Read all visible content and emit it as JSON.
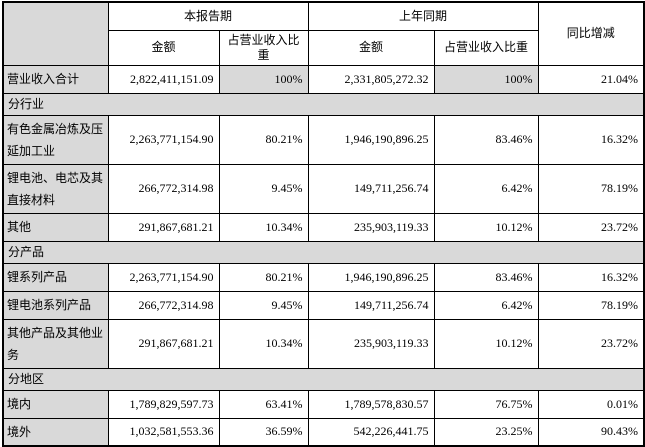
{
  "colors": {
    "shaded": "#d9d9d9",
    "border": "#000000",
    "text": "#000000",
    "background": "#ffffff"
  },
  "table": {
    "header": {
      "corner": "",
      "current_period": "本报告期",
      "prior_period": "上年同期",
      "yoy_change": "同比增减",
      "amount": "金额",
      "revenue_share": "占营业收入比重"
    },
    "rows": [
      {
        "type": "data",
        "name": "total-revenue",
        "label": "营业收入合计",
        "amount_current": "2,822,411,151.09",
        "share_current": "100%",
        "amount_prior": "2,331,805,272.32",
        "share_prior": "100%",
        "yoy": "21.04%",
        "shaded_share": true
      },
      {
        "type": "section",
        "name": "by-industry",
        "label": "分行业"
      },
      {
        "type": "data",
        "name": "nonferrous-metal-smelting",
        "label": "有色金属冶炼及压延加工业",
        "amount_current": "2,263,771,154.90",
        "share_current": "80.21%",
        "amount_prior": "1,946,190,896.25",
        "share_prior": "83.46%",
        "yoy": "16.32%",
        "shaded_share": false
      },
      {
        "type": "data",
        "name": "lithium-battery-cell-materials",
        "label": "锂电池、电芯及其直接材料",
        "amount_current": "266,772,314.98",
        "share_current": "9.45%",
        "amount_prior": "149,711,256.74",
        "share_prior": "6.42%",
        "yoy": "78.19%",
        "shaded_share": false
      },
      {
        "type": "data",
        "name": "other-industry",
        "label": "其他",
        "amount_current": "291,867,681.21",
        "share_current": "10.34%",
        "amount_prior": "235,903,119.33",
        "share_prior": "10.12%",
        "yoy": "23.72%",
        "shaded_share": false
      },
      {
        "type": "section",
        "name": "by-product",
        "label": "分产品"
      },
      {
        "type": "data",
        "name": "lithium-series-products",
        "label": "锂系列产品",
        "amount_current": "2,263,771,154.90",
        "share_current": "80.21%",
        "amount_prior": "1,946,190,896.25",
        "share_prior": "83.46%",
        "yoy": "16.32%",
        "shaded_share": false
      },
      {
        "type": "data",
        "name": "lithium-battery-series-products",
        "label": "锂电池系列产品",
        "amount_current": "266,772,314.98",
        "share_current": "9.45%",
        "amount_prior": "149,711,256.74",
        "share_prior": "6.42%",
        "yoy": "78.19%",
        "shaded_share": false
      },
      {
        "type": "data",
        "name": "other-products-and-business",
        "label": "其他产品及其他业务",
        "amount_current": "291,867,681.21",
        "share_current": "10.34%",
        "amount_prior": "235,903,119.33",
        "share_prior": "10.12%",
        "yoy": "23.72%",
        "shaded_share": false
      },
      {
        "type": "section",
        "name": "by-region",
        "label": "分地区"
      },
      {
        "type": "data",
        "name": "domestic",
        "label": "境内",
        "amount_current": "1,789,829,597.73",
        "share_current": "63.41%",
        "amount_prior": "1,789,578,830.57",
        "share_prior": "76.75%",
        "yoy": "0.01%",
        "shaded_share": false
      },
      {
        "type": "data",
        "name": "overseas",
        "label": "境外",
        "amount_current": "1,032,581,553.36",
        "share_current": "36.59%",
        "amount_prior": "542,226,441.75",
        "share_prior": "23.25%",
        "yoy": "90.43%",
        "shaded_share": false
      }
    ]
  }
}
